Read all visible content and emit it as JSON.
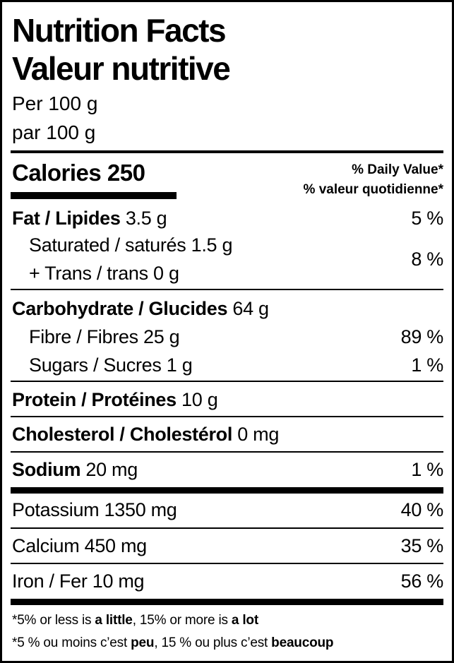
{
  "header": {
    "title_en": "Nutrition Facts",
    "title_fr": "Valeur nutritive",
    "serving_en": "Per 100 g",
    "serving_fr": "par 100 g"
  },
  "calories": {
    "label": "Calories",
    "value": "250"
  },
  "dv_header": {
    "en": "% Daily Value*",
    "fr": "% valeur quotidienne*"
  },
  "nutrients": [
    {
      "bold": "Fat / Lipides",
      "amount": " 3.5 g",
      "dv": "5 %"
    },
    {
      "bold": "",
      "amount": "Saturated / saturés 1.5 g",
      "dv": ""
    },
    {
      "bold": "",
      "amount": "+ Trans / trans 0 g",
      "dv": "8 %"
    },
    {
      "bold": "Carbohydrate / Glucides",
      "amount": " 64 g",
      "dv": ""
    },
    {
      "bold": "",
      "amount": "Fibre / Fibres 25 g",
      "dv": "89 %"
    },
    {
      "bold": "",
      "amount": "Sugars / Sucres 1 g",
      "dv": "1 %"
    },
    {
      "bold": "Protein / Protéines",
      "amount": " 10 g",
      "dv": ""
    },
    {
      "bold": "Cholesterol / Cholestérol",
      "amount": " 0 mg",
      "dv": ""
    },
    {
      "bold": "Sodium",
      "amount": " 20 mg",
      "dv": "1 %"
    },
    {
      "bold": "",
      "amount": "Potassium 1350 mg",
      "dv": "40 %"
    },
    {
      "bold": "",
      "amount": "Calcium 450 mg",
      "dv": "35 %"
    },
    {
      "bold": "",
      "amount": "Iron / Fer 10 mg",
      "dv": "56 %"
    }
  ],
  "footnote": {
    "en": {
      "t1": "*5% or less is ",
      "b1": "a little",
      "t2": ", 15% or more is ",
      "b2": "a lot"
    },
    "fr": {
      "t1": "*5 % ou moins c’est ",
      "b1": "peu",
      "t2": ", 15 % ou plus c’est ",
      "b2": "beaucoup"
    }
  }
}
